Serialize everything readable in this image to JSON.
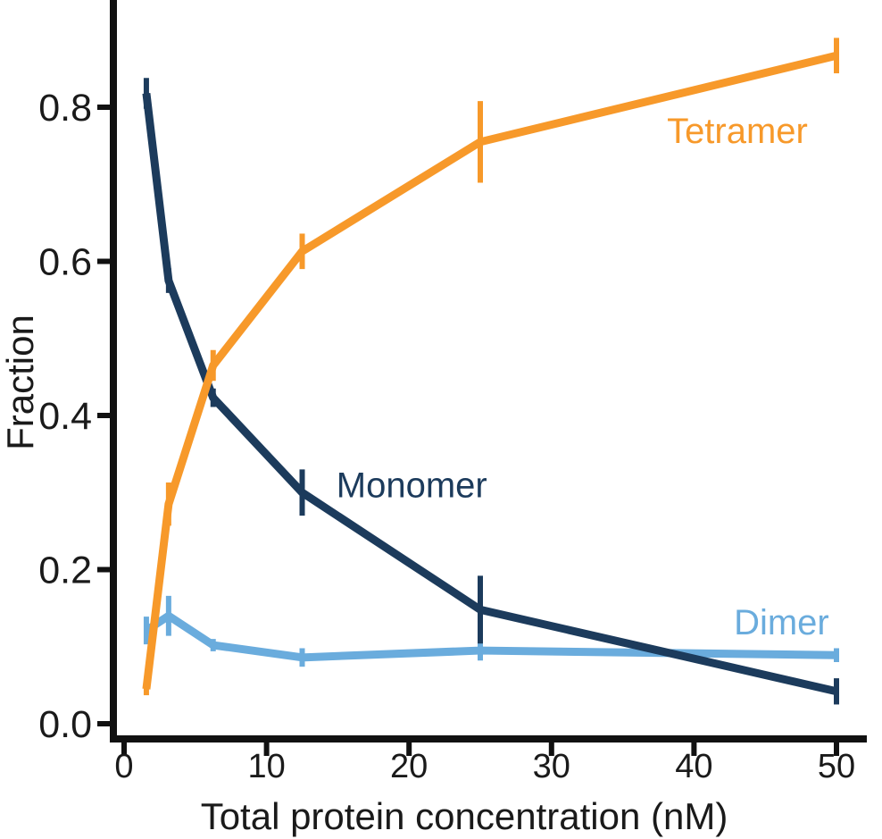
{
  "figure": {
    "background": "#ffffff",
    "description": "Line chart of oligomeric state fractions versus total protein concentration, three series with vertical error bars, open left/bottom spines"
  },
  "chart_data": {
    "type": "line",
    "title": "",
    "xlabel": "Total protein concentration (nM)",
    "ylabel": "Fraction",
    "x": [
      1.5625,
      3.125,
      6.25,
      12.5,
      25,
      50
    ],
    "xlim": [
      -1.3,
      52.2
    ],
    "ylim": [
      -0.02,
      0.94
    ],
    "grid": false,
    "legend_position": "inline-colored-text-annotations",
    "axis_color": "#111111",
    "text_color": "#1a1a1a",
    "xticks": [
      {
        "v": 0,
        "label": "0"
      },
      {
        "v": 10,
        "label": "10"
      },
      {
        "v": 20,
        "label": "20"
      },
      {
        "v": 30,
        "label": "30"
      },
      {
        "v": 40,
        "label": "40"
      },
      {
        "v": 50,
        "label": "50"
      }
    ],
    "yticks": [
      {
        "v": 0.0,
        "label": "0.0"
      },
      {
        "v": 0.2,
        "label": "0.2"
      },
      {
        "v": 0.4,
        "label": "0.4"
      },
      {
        "v": 0.6,
        "label": "0.6"
      },
      {
        "v": 0.8,
        "label": "0.8"
      }
    ],
    "series": [
      {
        "name": "Dimer",
        "color": "#6aacdd",
        "values": [
          0.121,
          0.14,
          0.102,
          0.086,
          0.095,
          0.089
        ],
        "errors": [
          0.018,
          0.026,
          0.008,
          0.012,
          0.013,
          0.009
        ],
        "annotation": {
          "text": "Dimer",
          "x": 42.8,
          "y": 0.132,
          "anchor": "start"
        }
      },
      {
        "name": "Monomer",
        "color": "#1c3b5c",
        "values": [
          0.818,
          0.575,
          0.423,
          0.3,
          0.148,
          0.042
        ],
        "errors": [
          0.02,
          0.016,
          0.012,
          0.03,
          0.044,
          0.017
        ],
        "annotation": {
          "text": "Monomer",
          "x": 14.9,
          "y": 0.31,
          "anchor": "start"
        }
      },
      {
        "name": "Tetramer",
        "color": "#f7992a",
        "values": [
          0.045,
          0.285,
          0.465,
          0.613,
          0.755,
          0.867
        ],
        "errors": [
          0.008,
          0.028,
          0.02,
          0.023,
          0.053,
          0.023
        ],
        "annotation": {
          "text": "Tetramer",
          "x": 38.1,
          "y": 0.77,
          "anchor": "start"
        }
      }
    ]
  }
}
